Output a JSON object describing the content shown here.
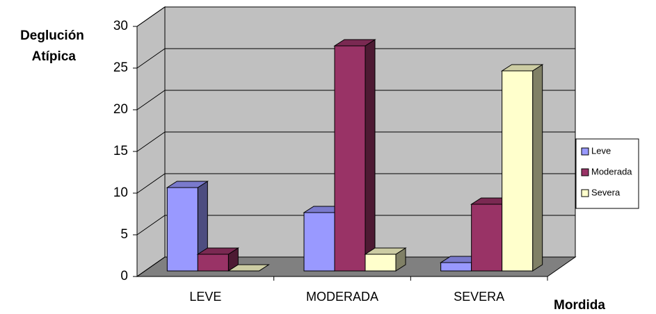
{
  "chart_data": {
    "type": "bar3d",
    "y_label": "Deglución Atípica",
    "x_label": "Mordida",
    "categories": [
      "LEVE",
      "MODERADA",
      "SEVERA"
    ],
    "series": [
      {
        "name": "Leve",
        "color": "#9999ff",
        "values": [
          10,
          7,
          1
        ]
      },
      {
        "name": "Moderada",
        "color": "#993366",
        "values": [
          2,
          27,
          8
        ]
      },
      {
        "name": "Severa",
        "color": "#ffffcc",
        "values": [
          0,
          2,
          24
        ]
      }
    ],
    "ylim": [
      0,
      30
    ],
    "yticks": [
      0,
      5,
      10,
      15,
      20,
      25,
      30
    ],
    "grid": true,
    "legend": "right"
  }
}
